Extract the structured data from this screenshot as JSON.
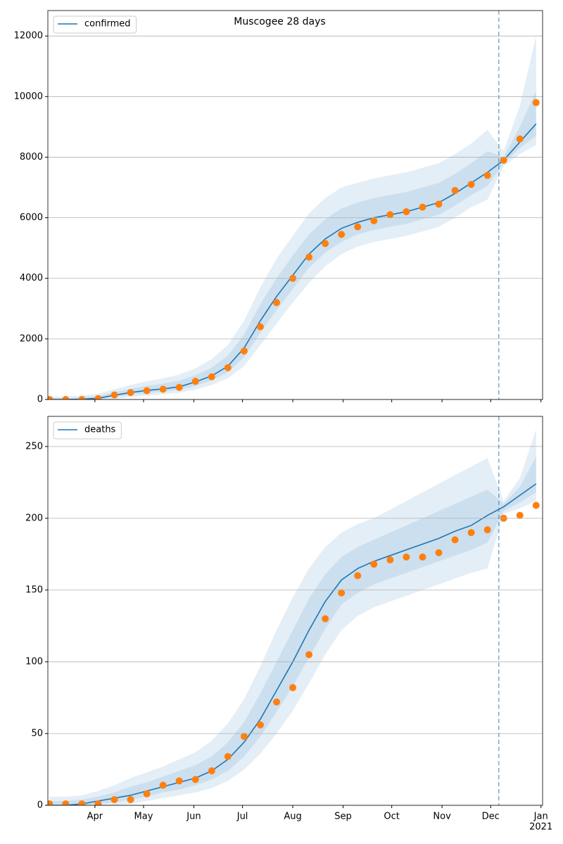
{
  "chart_data": [
    {
      "type": "line",
      "title": "Muscogee 28 days",
      "x": [
        64,
        74,
        84,
        94,
        104,
        114,
        124,
        134,
        144,
        154,
        164,
        174,
        184,
        194,
        204,
        214,
        224,
        234,
        244,
        254,
        264,
        274,
        284,
        294,
        304,
        314,
        324,
        334,
        344,
        354,
        364
      ],
      "series": [
        {
          "name": "confirmed",
          "color": "#1f77b4",
          "values": [
            0,
            0,
            10,
            40,
            140,
            230,
            300,
            350,
            420,
            580,
            780,
            1100,
            1700,
            2600,
            3400,
            4100,
            4800,
            5300,
            5650,
            5850,
            6000,
            6100,
            6200,
            6350,
            6500,
            6800,
            7150,
            7500,
            7900,
            8500,
            9100
          ]
        }
      ],
      "observed": {
        "color": "#ff7f0e",
        "values": [
          0,
          0,
          0,
          30,
          150,
          230,
          290,
          340,
          400,
          600,
          750,
          1050,
          1600,
          2400,
          3200,
          4000,
          4700,
          5150,
          5450,
          5700,
          5900,
          6100,
          6200,
          6350,
          6450,
          6900,
          7100,
          7400,
          7900,
          8600,
          9800
        ]
      },
      "band_color": "#1f77b4",
      "bands": [
        {
          "lower": [
            0,
            0,
            0,
            0,
            20,
            80,
            130,
            170,
            220,
            330,
            480,
            700,
            1100,
            1800,
            2500,
            3200,
            3850,
            4400,
            4800,
            5050,
            5200,
            5300,
            5400,
            5550,
            5700,
            6000,
            6350,
            6600,
            7700,
            8100,
            8400
          ],
          "upper": [
            100,
            100,
            130,
            190,
            340,
            480,
            600,
            700,
            820,
            1030,
            1330,
            1800,
            2600,
            3700,
            4650,
            5400,
            6150,
            6650,
            7000,
            7150,
            7300,
            7400,
            7500,
            7650,
            7800,
            8100,
            8450,
            8900,
            8200,
            9700,
            12000
          ]
        },
        {
          "lower": [
            0,
            0,
            0,
            20,
            80,
            150,
            210,
            260,
            320,
            450,
            630,
            900,
            1400,
            2200,
            2950,
            3650,
            4350,
            4850,
            5200,
            5450,
            5600,
            5700,
            5800,
            5950,
            6100,
            6400,
            6750,
            7050,
            7800,
            8300,
            8700
          ],
          "upper": [
            50,
            50,
            70,
            110,
            240,
            350,
            450,
            520,
            620,
            800,
            1050,
            1450,
            2150,
            3150,
            4000,
            4750,
            5450,
            5950,
            6300,
            6500,
            6650,
            6750,
            6850,
            7000,
            7150,
            7450,
            7800,
            8200,
            8000,
            9000,
            10200
          ]
        }
      ],
      "forecast_start": 341,
      "xlim": [
        63,
        368
      ],
      "xticks": [
        92,
        122,
        153,
        183,
        214,
        245,
        275,
        306,
        336,
        367
      ],
      "xtick_labels": false,
      "ylim": [
        0,
        12840
      ],
      "yticks": [
        0,
        2000,
        4000,
        6000,
        8000,
        10000,
        12000
      ],
      "grid": true,
      "legend": "upper left"
    },
    {
      "type": "line",
      "x": [
        64,
        74,
        84,
        94,
        104,
        114,
        124,
        134,
        144,
        154,
        164,
        174,
        184,
        194,
        204,
        214,
        224,
        234,
        244,
        254,
        264,
        274,
        284,
        294,
        304,
        314,
        324,
        334,
        344,
        354,
        364
      ],
      "series": [
        {
          "name": "deaths",
          "color": "#1f77b4",
          "values": [
            0,
            0,
            1,
            3,
            5,
            7,
            10,
            13,
            16,
            19,
            24,
            32,
            44,
            60,
            80,
            100,
            122,
            142,
            157,
            165,
            170,
            174,
            178,
            182,
            186,
            191,
            195,
            202,
            208,
            216,
            224
          ]
        }
      ],
      "observed": {
        "color": "#ff7f0e",
        "values": [
          1,
          1,
          1,
          1,
          4,
          4,
          8,
          14,
          17,
          18,
          24,
          34,
          48,
          56,
          72,
          82,
          105,
          130,
          148,
          160,
          168,
          171,
          173,
          173,
          176,
          185,
          190,
          192,
          200,
          202,
          209
        ]
      },
      "band_color": "#1f77b4",
      "bands": [
        {
          "lower": [
            0,
            0,
            0,
            0,
            0,
            1,
            3,
            5,
            7,
            9,
            12,
            17,
            25,
            36,
            50,
            66,
            85,
            105,
            122,
            132,
            138,
            142,
            146,
            150,
            154,
            158,
            162,
            165,
            203,
            207,
            212
          ],
          "upper": [
            6,
            6,
            7,
            10,
            14,
            19,
            23,
            27,
            32,
            37,
            45,
            57,
            74,
            97,
            122,
            145,
            165,
            180,
            190,
            196,
            200,
            206,
            212,
            218,
            224,
            230,
            236,
            242,
            212,
            228,
            262
          ]
        },
        {
          "lower": [
            0,
            0,
            0,
            1,
            2,
            4,
            6,
            9,
            11,
            14,
            18,
            24,
            34,
            48,
            65,
            83,
            103,
            123,
            140,
            148,
            154,
            158,
            162,
            166,
            170,
            174,
            178,
            183,
            205,
            211,
            218
          ],
          "upper": [
            3,
            3,
            4,
            6,
            9,
            13,
            16,
            20,
            24,
            28,
            34,
            44,
            58,
            78,
            100,
            122,
            144,
            161,
            173,
            180,
            185,
            190,
            195,
            200,
            205,
            210,
            215,
            220,
            210,
            222,
            243
          ]
        }
      ],
      "forecast_start": 341,
      "xlim": [
        63,
        368
      ],
      "xticks": [
        {
          "value": 92,
          "label": "Apr"
        },
        {
          "value": 122,
          "label": "May"
        },
        {
          "value": 153,
          "label": "Jun"
        },
        {
          "value": 183,
          "label": "Jul"
        },
        {
          "value": 214,
          "label": "Aug"
        },
        {
          "value": 245,
          "label": "Sep"
        },
        {
          "value": 275,
          "label": "Oct"
        },
        {
          "value": 306,
          "label": "Nov"
        },
        {
          "value": 336,
          "label": "Dec"
        },
        {
          "value": 367,
          "label": "Jan",
          "sublabel": "2021"
        }
      ],
      "ylim": [
        0,
        271
      ],
      "yticks": [
        0,
        50,
        100,
        150,
        200,
        250
      ],
      "grid": true,
      "legend": "upper left"
    }
  ]
}
